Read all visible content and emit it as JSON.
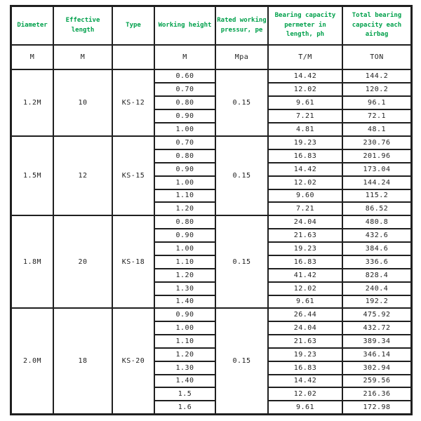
{
  "table": {
    "header": [
      "Diameter",
      "Effective length",
      "Type",
      "Working height",
      "Rated working pressur, pe",
      "Bearing capacity permeter in length, ph",
      "Total bearing capacity each airbag"
    ],
    "units": [
      "M",
      "M",
      "",
      "M",
      "Mpa",
      "T/M",
      "TON"
    ],
    "groups": [
      {
        "diameter": "1.2M",
        "effective_length": "10",
        "type": "KS-12",
        "pressure": "0.15",
        "rows": [
          {
            "height": "0.60",
            "ph": "14.42",
            "total": "144.2"
          },
          {
            "height": "0.70",
            "ph": "12.02",
            "total": "120.2"
          },
          {
            "height": "0.80",
            "ph": "9.61",
            "total": "96.1"
          },
          {
            "height": "0.90",
            "ph": "7.21",
            "total": "72.1"
          },
          {
            "height": "1.00",
            "ph": "4.81",
            "total": "48.1"
          }
        ]
      },
      {
        "diameter": "1.5M",
        "effective_length": "12",
        "type": "KS-15",
        "pressure": "0.15",
        "rows": [
          {
            "height": "0.70",
            "ph": "19.23",
            "total": "230.76"
          },
          {
            "height": "0.80",
            "ph": "16.83",
            "total": "201.96"
          },
          {
            "height": "0.90",
            "ph": "14.42",
            "total": "173.04"
          },
          {
            "height": "1.00",
            "ph": "12.02",
            "total": "144.24"
          },
          {
            "height": "1.10",
            "ph": "9.60",
            "total": "115.2"
          },
          {
            "height": "1.20",
            "ph": "7.21",
            "total": "86.52"
          }
        ]
      },
      {
        "diameter": "1.8M",
        "effective_length": "20",
        "type": "KS-18",
        "pressure": "0.15",
        "rows": [
          {
            "height": "0.80",
            "ph": "24.04",
            "total": "480.8"
          },
          {
            "height": "0.90",
            "ph": "21.63",
            "total": "432.6"
          },
          {
            "height": "1.00",
            "ph": "19.23",
            "total": "384.6"
          },
          {
            "height": "1.10",
            "ph": "16.83",
            "total": "336.6"
          },
          {
            "height": "1.20",
            "ph": "41.42",
            "total": "828.4"
          },
          {
            "height": "1.30",
            "ph": "12.02",
            "total": "240.4"
          },
          {
            "height": "1.40",
            "ph": "9.61",
            "total": "192.2"
          }
        ]
      },
      {
        "diameter": "2.0M",
        "effective_length": "18",
        "type": "KS-20",
        "pressure": "0.15",
        "rows": [
          {
            "height": "0.90",
            "ph": "26.44",
            "total": "475.92"
          },
          {
            "height": "1.00",
            "ph": "24.04",
            "total": "432.72"
          },
          {
            "height": "1.10",
            "ph": "21.63",
            "total": "389.34"
          },
          {
            "height": "1.20",
            "ph": "19.23",
            "total": "346.14"
          },
          {
            "height": "1.30",
            "ph": "16.83",
            "total": "302.94"
          },
          {
            "height": "1.40",
            "ph": "14.42",
            "total": "259.56"
          },
          {
            "height": "1.5",
            "ph": "12.02",
            "total": "216.36"
          },
          {
            "height": "1.6",
            "ph": "9.61",
            "total": "172.98"
          }
        ]
      }
    ],
    "colors": {
      "header_text": "#00a04b",
      "border": "#1f1f1f",
      "data_text": "#1f1f1f",
      "background": "#ffffff"
    }
  }
}
